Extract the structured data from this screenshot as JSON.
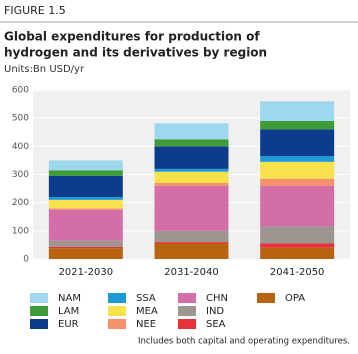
{
  "figure_label": "FIGURE 1.5",
  "chart_data": {
    "type": "stacked_bar",
    "title": [
      "Global expenditures for production of",
      "hydrogen and its derivatives by region"
    ],
    "subtitle": "Units:Bn USD/yr",
    "categories": [
      "2021-2030",
      "2031-2040",
      "2041-2050"
    ],
    "series": [
      {
        "name": "NAM",
        "color": "#9fd8ee",
        "values": [
          35,
          57,
          70
        ]
      },
      {
        "name": "LAM",
        "color": "#3f9a3a",
        "values": [
          20,
          25,
          30
        ]
      },
      {
        "name": "EUR",
        "color": "#0d3c8c",
        "values": [
          75,
          80,
          95
        ]
      },
      {
        "name": "SSA",
        "color": "#1b9ad6",
        "values": [
          10,
          10,
          20
        ]
      },
      {
        "name": "MEA",
        "color": "#f7e24b",
        "values": [
          30,
          40,
          60
        ]
      },
      {
        "name": "NEE",
        "color": "#f5926b",
        "values": [
          5,
          10,
          25
        ]
      },
      {
        "name": "CHN",
        "color": "#d46ea8",
        "values": [
          110,
          160,
          145
        ]
      },
      {
        "name": "IND",
        "color": "#9c9590",
        "values": [
          22,
          40,
          60
        ]
      },
      {
        "name": "SEA",
        "color": "#e8323a",
        "values": [
          5,
          5,
          15
        ]
      },
      {
        "name": "OPA",
        "color": "#b8640f",
        "values": [
          38,
          55,
          40
        ]
      }
    ],
    "ylim": [
      0,
      600
    ],
    "yticks": [
      0,
      100,
      200,
      300,
      400,
      500,
      600
    ],
    "grid": true,
    "footnote": "Includes both capital and operating expenditures."
  }
}
